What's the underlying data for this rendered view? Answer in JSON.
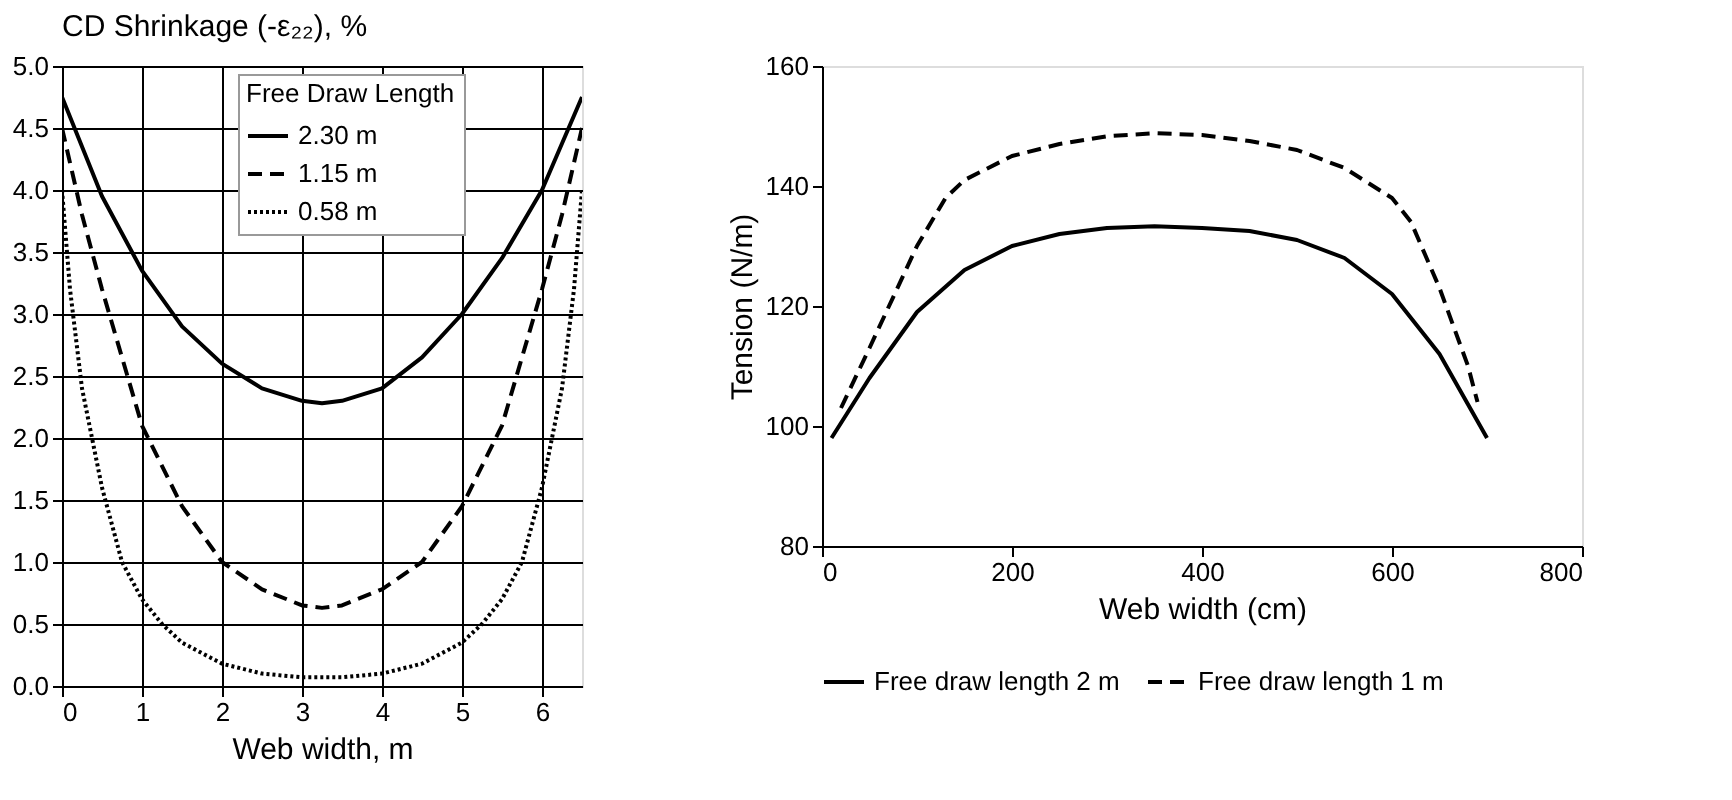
{
  "chart_data": [
    {
      "type": "line",
      "title": "CD Shrinkage (-ε₂₂), %",
      "xlabel": "Web width, m",
      "legend_title": "Free Draw Length",
      "xlim": [
        0,
        6.5
      ],
      "ylim": [
        0,
        5
      ],
      "xticks": [
        0,
        1,
        2,
        3,
        4,
        5,
        6
      ],
      "yticks": [
        {
          "value": 0,
          "label": "0.0"
        },
        0.5,
        {
          "value": 1,
          "label": "1.0"
        },
        1.5,
        {
          "value": 2,
          "label": "2.0"
        },
        2.5,
        {
          "value": 3,
          "label": "3.0"
        },
        3.5,
        {
          "value": 4,
          "label": "4.0"
        },
        4.5,
        {
          "value": 5,
          "label": "5.0"
        }
      ],
      "grid": true,
      "legend": "top right",
      "series": [
        {
          "name": "2.30 m",
          "color": "#000000",
          "line_style": "solid",
          "x": [
            0,
            0.5,
            1,
            1.5,
            2,
            2.5,
            3,
            3.25,
            3.5,
            4,
            4.5,
            5,
            5.5,
            6,
            6.5
          ],
          "values": [
            4.75,
            3.95,
            3.35,
            2.9,
            2.6,
            2.4,
            2.3,
            2.28,
            2.3,
            2.4,
            2.65,
            3.0,
            3.45,
            4.0,
            4.75
          ]
        },
        {
          "name": "1.15 m",
          "color": "#000000",
          "line_style": "dashed",
          "x": [
            0,
            0.25,
            0.5,
            1,
            1.5,
            2,
            2.5,
            3,
            3.25,
            3.5,
            4,
            4.5,
            5,
            5.5,
            6,
            6.25,
            6.5
          ],
          "values": [
            4.5,
            3.8,
            3.2,
            2.1,
            1.45,
            1.0,
            0.78,
            0.65,
            0.63,
            0.65,
            0.78,
            1.0,
            1.45,
            2.1,
            3.2,
            3.8,
            4.5
          ]
        },
        {
          "name": "0.58 m",
          "color": "#000000",
          "line_style": "dotted",
          "x": [
            0,
            0.1,
            0.25,
            0.5,
            0.75,
            1,
            1.25,
            1.5,
            2,
            2.5,
            3,
            3.25,
            3.5,
            4,
            4.5,
            5,
            5.25,
            5.5,
            5.75,
            6,
            6.25,
            6.4,
            6.5
          ],
          "values": [
            4.0,
            3.2,
            2.4,
            1.6,
            1.0,
            0.7,
            0.5,
            0.35,
            0.18,
            0.1,
            0.07,
            0.07,
            0.07,
            0.1,
            0.18,
            0.35,
            0.5,
            0.7,
            1.0,
            1.6,
            2.4,
            3.2,
            4.0
          ]
        }
      ]
    },
    {
      "type": "line",
      "xlabel": "Web width (cm)",
      "ylabel": "Tension (N/m)",
      "xlim": [
        0,
        800
      ],
      "ylim": [
        80,
        160
      ],
      "xticks": [
        0,
        200,
        400,
        600,
        800
      ],
      "yticks": [
        80,
        100,
        120,
        140,
        160
      ],
      "legend": "bottom",
      "series": [
        {
          "name": "Free draw length 2 m",
          "color": "#000000",
          "line_style": "solid",
          "x": [
            10,
            50,
            100,
            150,
            200,
            250,
            300,
            350,
            400,
            450,
            500,
            550,
            600,
            650,
            700
          ],
          "values": [
            98,
            108,
            119,
            126,
            130,
            132,
            133,
            133.3,
            133,
            132.5,
            131,
            128,
            122,
            112,
            98
          ]
        },
        {
          "name": "Free draw length 1 m",
          "color": "#000000",
          "line_style": "dashed",
          "x": [
            20,
            50,
            100,
            130,
            150,
            200,
            250,
            300,
            350,
            400,
            450,
            500,
            550,
            600,
            620,
            650,
            680,
            690
          ],
          "values": [
            103,
            113,
            130,
            138,
            141,
            145,
            147,
            148.3,
            148.8,
            148.5,
            147.5,
            146,
            143,
            138,
            134,
            123,
            110,
            104
          ]
        }
      ]
    }
  ]
}
